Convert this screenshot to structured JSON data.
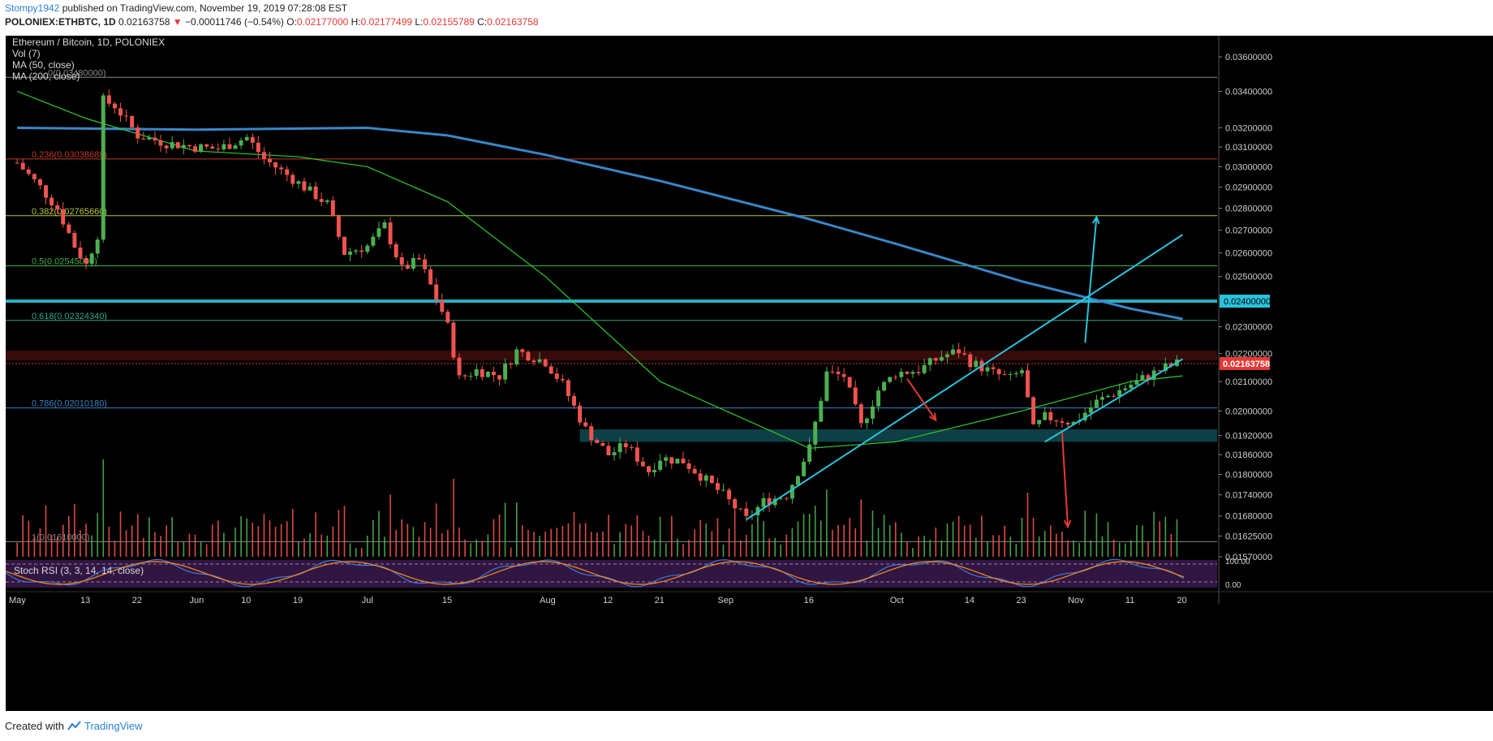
{
  "header": {
    "author": "Stompy1942",
    "published_text": " published on TradingView.com, November 19, 2019 07:28:08 EST",
    "symbol": "POLONIEX:ETHBTC, 1D",
    "last": "0.02163758",
    "change_arrow": "▼",
    "change": "−0.00011746 (−0.54%)",
    "o_label": "O:",
    "o_value": "0.02177000",
    "h_label": "H:",
    "h_value": "0.02177499",
    "l_label": "L:",
    "l_value": "0.02155789",
    "c_label": "C:",
    "c_value": "0.02163758"
  },
  "legend": {
    "title": "Ethereum / Bitcoin, 1D, POLONIEX",
    "vol": "Vol (7)",
    "ma50": "MA (50, close)",
    "ma200": "MA (200, close)"
  },
  "stoch_label": "Stoch RSI (3, 3, 14, 14, close)",
  "footer": {
    "created_with": "Created with",
    "brand": "TradingView"
  },
  "colors": {
    "background": "#000000",
    "up": "#4caf50",
    "down": "#ef5350",
    "ma50": "#2ecc2e",
    "ma200": "#3a86c8",
    "trendline": "#2ac3dc",
    "horizontal_resistance": "#2ac3dc",
    "price_tag": "#e53935"
  },
  "chart_data": {
    "type": "candlestick",
    "symbol": "ETHBTC",
    "timeframe": "1D",
    "exchange": "POLONIEX",
    "x_tick_labels": [
      "May",
      "13",
      "22",
      "Jun",
      "10",
      "19",
      "Jul",
      "15",
      "Aug",
      "12",
      "21",
      "Sep",
      "16",
      "Oct",
      "14",
      "23",
      "Nov",
      "11",
      "20"
    ],
    "x_tick_dates": [
      "2019-05-01",
      "2019-05-13",
      "2019-05-22",
      "2019-06-01",
      "2019-06-10",
      "2019-06-19",
      "2019-07-01",
      "2019-07-15",
      "2019-08-01",
      "2019-08-12",
      "2019-08-21",
      "2019-09-01",
      "2019-09-16",
      "2019-10-01",
      "2019-10-14",
      "2019-10-23",
      "2019-11-01",
      "2019-11-11",
      "2019-11-20"
    ],
    "y_axis_labels": [
      "0.03600000",
      "0.03400000",
      "0.03200000",
      "0.03100000",
      "0.03000000",
      "0.02900000",
      "0.02800000",
      "0.02700000",
      "0.02600000",
      "0.02500000",
      "0.02300000",
      "0.02200000",
      "0.02100000",
      "0.02000000",
      "0.01920000",
      "0.01860000",
      "0.01800000",
      "0.01740000",
      "0.01680000",
      "0.01625000",
      "0.01570000"
    ],
    "y_axis_values": [
      0.036,
      0.034,
      0.032,
      0.031,
      0.03,
      0.029,
      0.028,
      0.027,
      0.026,
      0.025,
      0.023,
      0.022,
      0.021,
      0.02,
      0.0192,
      0.0186,
      0.018,
      0.0174,
      0.0168,
      0.01625,
      0.0157
    ],
    "ylim": [
      0.0157,
      0.0362
    ],
    "y_scale": "log",
    "fib_levels": [
      {
        "label": "0(0.03480000)",
        "value": 0.0348
      },
      {
        "label": "0.236(0.03038688)",
        "value": 0.03038688
      },
      {
        "label": "0.382(0.02765660)",
        "value": 0.0276566
      },
      {
        "label": "0.5(0.02545000)",
        "value": 0.02545
      },
      {
        "label": "0.618(0.02324340)",
        "value": 0.0232434
      },
      {
        "label": "0.786(0.02010180)",
        "value": 0.0201018
      },
      {
        "label": "1(0.01610000)",
        "value": 0.0161
      }
    ],
    "resistance_line": {
      "value": 0.024,
      "label": "0.02400000"
    },
    "last_price": {
      "value": 0.02163758,
      "label": "0.02163758"
    },
    "supply_zone": [
      0.02175,
      0.0221
    ],
    "demand_zone": [
      0.019,
      0.0194
    ],
    "closes": [
      {
        "date": "2019-05-01",
        "close": 0.0302
      },
      {
        "date": "2019-05-05",
        "close": 0.029
      },
      {
        "date": "2019-05-08",
        "close": 0.028
      },
      {
        "date": "2019-05-11",
        "close": 0.0263
      },
      {
        "date": "2019-05-13",
        "close": 0.0255
      },
      {
        "date": "2019-05-15",
        "close": 0.0268
      },
      {
        "date": "2019-05-16",
        "close": 0.0335
      },
      {
        "date": "2019-05-18",
        "close": 0.0332
      },
      {
        "date": "2019-05-22",
        "close": 0.0316
      },
      {
        "date": "2019-05-27",
        "close": 0.0312
      },
      {
        "date": "2019-06-01",
        "close": 0.031
      },
      {
        "date": "2019-06-05",
        "close": 0.0309
      },
      {
        "date": "2019-06-10",
        "close": 0.0315
      },
      {
        "date": "2019-06-13",
        "close": 0.0304
      },
      {
        "date": "2019-06-19",
        "close": 0.0292
      },
      {
        "date": "2019-06-24",
        "close": 0.0282
      },
      {
        "date": "2019-06-27",
        "close": 0.026
      },
      {
        "date": "2019-07-01",
        "close": 0.0263
      },
      {
        "date": "2019-07-04",
        "close": 0.0272
      },
      {
        "date": "2019-07-07",
        "close": 0.0253
      },
      {
        "date": "2019-07-10",
        "close": 0.0257
      },
      {
        "date": "2019-07-14",
        "close": 0.0236
      },
      {
        "date": "2019-07-15",
        "close": 0.023
      },
      {
        "date": "2019-07-17",
        "close": 0.0211
      },
      {
        "date": "2019-07-20",
        "close": 0.0214
      },
      {
        "date": "2019-07-24",
        "close": 0.0212
      },
      {
        "date": "2019-07-27",
        "close": 0.0221
      },
      {
        "date": "2019-08-01",
        "close": 0.0217
      },
      {
        "date": "2019-08-04",
        "close": 0.0209
      },
      {
        "date": "2019-08-08",
        "close": 0.0194
      },
      {
        "date": "2019-08-12",
        "close": 0.0186
      },
      {
        "date": "2019-08-15",
        "close": 0.0189
      },
      {
        "date": "2019-08-19",
        "close": 0.0181
      },
      {
        "date": "2019-08-21",
        "close": 0.0185
      },
      {
        "date": "2019-08-25",
        "close": 0.0184
      },
      {
        "date": "2019-09-01",
        "close": 0.0174
      },
      {
        "date": "2019-09-05",
        "close": 0.0167
      },
      {
        "date": "2019-09-08",
        "close": 0.0172
      },
      {
        "date": "2019-09-12",
        "close": 0.0174
      },
      {
        "date": "2019-09-16",
        "close": 0.0188
      },
      {
        "date": "2019-09-19",
        "close": 0.0213
      },
      {
        "date": "2019-09-22",
        "close": 0.0212
      },
      {
        "date": "2019-09-25",
        "close": 0.0195
      },
      {
        "date": "2019-09-28",
        "close": 0.0207
      },
      {
        "date": "2019-10-01",
        "close": 0.0213
      },
      {
        "date": "2019-10-05",
        "close": 0.0214
      },
      {
        "date": "2019-10-09",
        "close": 0.0219
      },
      {
        "date": "2019-10-12",
        "close": 0.0221
      },
      {
        "date": "2019-10-14",
        "close": 0.0217
      },
      {
        "date": "2019-10-18",
        "close": 0.0213
      },
      {
        "date": "2019-10-21",
        "close": 0.0211
      },
      {
        "date": "2019-10-23",
        "close": 0.0214
      },
      {
        "date": "2019-10-25",
        "close": 0.0194
      },
      {
        "date": "2019-10-27",
        "close": 0.0198
      },
      {
        "date": "2019-10-30",
        "close": 0.0197
      },
      {
        "date": "2019-11-01",
        "close": 0.0196
      },
      {
        "date": "2019-11-05",
        "close": 0.0203
      },
      {
        "date": "2019-11-08",
        "close": 0.0206
      },
      {
        "date": "2019-11-11",
        "close": 0.0209
      },
      {
        "date": "2019-11-14",
        "close": 0.0212
      },
      {
        "date": "2019-11-17",
        "close": 0.0215
      },
      {
        "date": "2019-11-19",
        "close": 0.02163758
      }
    ],
    "ma200": [
      {
        "date": "2019-05-01",
        "value": 0.032
      },
      {
        "date": "2019-06-01",
        "value": 0.0319
      },
      {
        "date": "2019-07-01",
        "value": 0.032
      },
      {
        "date": "2019-07-15",
        "value": 0.0316
      },
      {
        "date": "2019-08-01",
        "value": 0.0306
      },
      {
        "date": "2019-08-21",
        "value": 0.0293
      },
      {
        "date": "2019-09-16",
        "value": 0.0275
      },
      {
        "date": "2019-10-01",
        "value": 0.0264
      },
      {
        "date": "2019-10-23",
        "value": 0.0248
      },
      {
        "date": "2019-11-11",
        "value": 0.0237
      },
      {
        "date": "2019-11-20",
        "value": 0.0233
      }
    ],
    "ma50": [
      {
        "date": "2019-05-01",
        "value": 0.034
      },
      {
        "date": "2019-05-13",
        "value": 0.0325
      },
      {
        "date": "2019-06-01",
        "value": 0.0308
      },
      {
        "date": "2019-06-19",
        "value": 0.0305
      },
      {
        "date": "2019-07-01",
        "value": 0.03
      },
      {
        "date": "2019-07-15",
        "value": 0.0283
      },
      {
        "date": "2019-08-01",
        "value": 0.025
      },
      {
        "date": "2019-08-21",
        "value": 0.021
      },
      {
        "date": "2019-09-16",
        "value": 0.0188
      },
      {
        "date": "2019-10-01",
        "value": 0.019
      },
      {
        "date": "2019-10-23",
        "value": 0.02
      },
      {
        "date": "2019-11-11",
        "value": 0.021
      },
      {
        "date": "2019-11-20",
        "value": 0.0212
      }
    ],
    "trendlines": [
      {
        "from": {
          "date": "2019-09-05",
          "value": 0.0167
        },
        "to": {
          "date": "2019-11-20",
          "value": 0.0268
        }
      },
      {
        "from": {
          "date": "2019-10-27",
          "value": 0.019
        },
        "to": {
          "date": "2019-11-20",
          "value": 0.0218
        }
      }
    ],
    "arrows": [
      {
        "color": "red",
        "from": {
          "date": "2019-10-03",
          "value": 0.0211
        },
        "to": {
          "date": "2019-10-08",
          "value": 0.0197
        }
      },
      {
        "color": "cyan",
        "from": {
          "date": "2019-11-03",
          "value": 0.0224
        },
        "to": {
          "date": "2019-11-05",
          "value": 0.0276
        }
      },
      {
        "color": "red",
        "from": {
          "date": "2019-10-30",
          "value": 0.0193
        },
        "to": {
          "date": "2019-10-31",
          "value": 0.0165
        }
      }
    ],
    "stoch_rsi": {
      "label": "Stoch RSI (3, 3, 14, 14, close)",
      "y_axis_labels": [
        "100.00",
        "0.00"
      ],
      "levels": [
        80,
        20
      ]
    }
  }
}
